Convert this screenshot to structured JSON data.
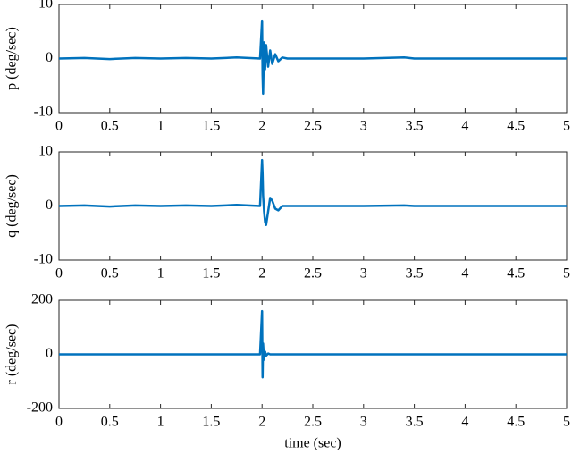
{
  "chart_data": [
    {
      "type": "line",
      "ylabel": "p (deg/sec)",
      "color": "#0072bd",
      "xlim": [
        0,
        5
      ],
      "ylim": [
        -10,
        10
      ],
      "xticks": [
        0,
        0.5,
        1,
        1.5,
        2,
        2.5,
        3,
        3.5,
        4,
        4.5,
        5
      ],
      "yticks": [
        -10,
        0,
        10
      ],
      "x": [
        0,
        0.25,
        0.5,
        0.75,
        1.0,
        1.25,
        1.5,
        1.75,
        1.98,
        2.0,
        2.005,
        2.01,
        2.02,
        2.03,
        2.04,
        2.06,
        2.08,
        2.1,
        2.13,
        2.16,
        2.2,
        2.25,
        2.5,
        3.0,
        3.4,
        3.5,
        4.0,
        5.0
      ],
      "values": [
        0,
        0.1,
        -0.1,
        0.1,
        0,
        0.1,
        0,
        0.2,
        0,
        7,
        -3,
        -6.5,
        3,
        -2,
        2.5,
        -1.5,
        1.5,
        -1,
        0.8,
        -0.5,
        0.2,
        0,
        0,
        0,
        0.2,
        0,
        0,
        0
      ]
    },
    {
      "type": "line",
      "ylabel": "q (deg/sec)",
      "color": "#0072bd",
      "xlim": [
        0,
        5
      ],
      "ylim": [
        -10,
        10
      ],
      "xticks": [
        0,
        0.5,
        1,
        1.5,
        2,
        2.5,
        3,
        3.5,
        4,
        4.5,
        5
      ],
      "yticks": [
        -10,
        0,
        10
      ],
      "x": [
        0,
        0.25,
        0.5,
        0.75,
        1.0,
        1.25,
        1.5,
        1.75,
        1.98,
        2.0,
        2.005,
        2.01,
        2.02,
        2.03,
        2.04,
        2.06,
        2.08,
        2.1,
        2.13,
        2.16,
        2.2,
        2.25,
        2.5,
        3.0,
        3.4,
        3.5,
        4.0,
        5.0
      ],
      "values": [
        0,
        0.1,
        -0.1,
        0.1,
        0,
        0.1,
        0,
        0.2,
        0,
        8.5,
        6,
        2,
        -1,
        -3,
        -3.5,
        -1,
        1.5,
        1,
        -0.5,
        -0.8,
        0,
        0,
        0,
        0,
        0.1,
        0,
        0,
        0
      ]
    },
    {
      "type": "line",
      "ylabel": "r (deg/sec)",
      "xlabel": "time (sec)",
      "color": "#0072bd",
      "xlim": [
        0,
        5
      ],
      "ylim": [
        -200,
        200
      ],
      "xticks": [
        0,
        0.5,
        1,
        1.5,
        2,
        2.5,
        3,
        3.5,
        4,
        4.5,
        5
      ],
      "yticks": [
        -200,
        0,
        200
      ],
      "x": [
        0,
        0.25,
        0.5,
        0.75,
        1.0,
        1.25,
        1.5,
        1.75,
        1.98,
        2.0,
        2.005,
        2.01,
        2.02,
        2.03,
        2.04,
        2.06,
        2.08,
        2.1,
        2.13,
        2.16,
        2.2,
        2.25,
        2.5,
        3.0,
        3.4,
        3.5,
        4.0,
        5.0
      ],
      "values": [
        0,
        0,
        0,
        0,
        0,
        0,
        0,
        0,
        0,
        160,
        -85,
        40,
        -20,
        10,
        -5,
        3,
        0,
        0,
        0,
        0,
        0,
        0,
        0,
        0,
        0,
        0,
        0,
        0
      ]
    }
  ]
}
